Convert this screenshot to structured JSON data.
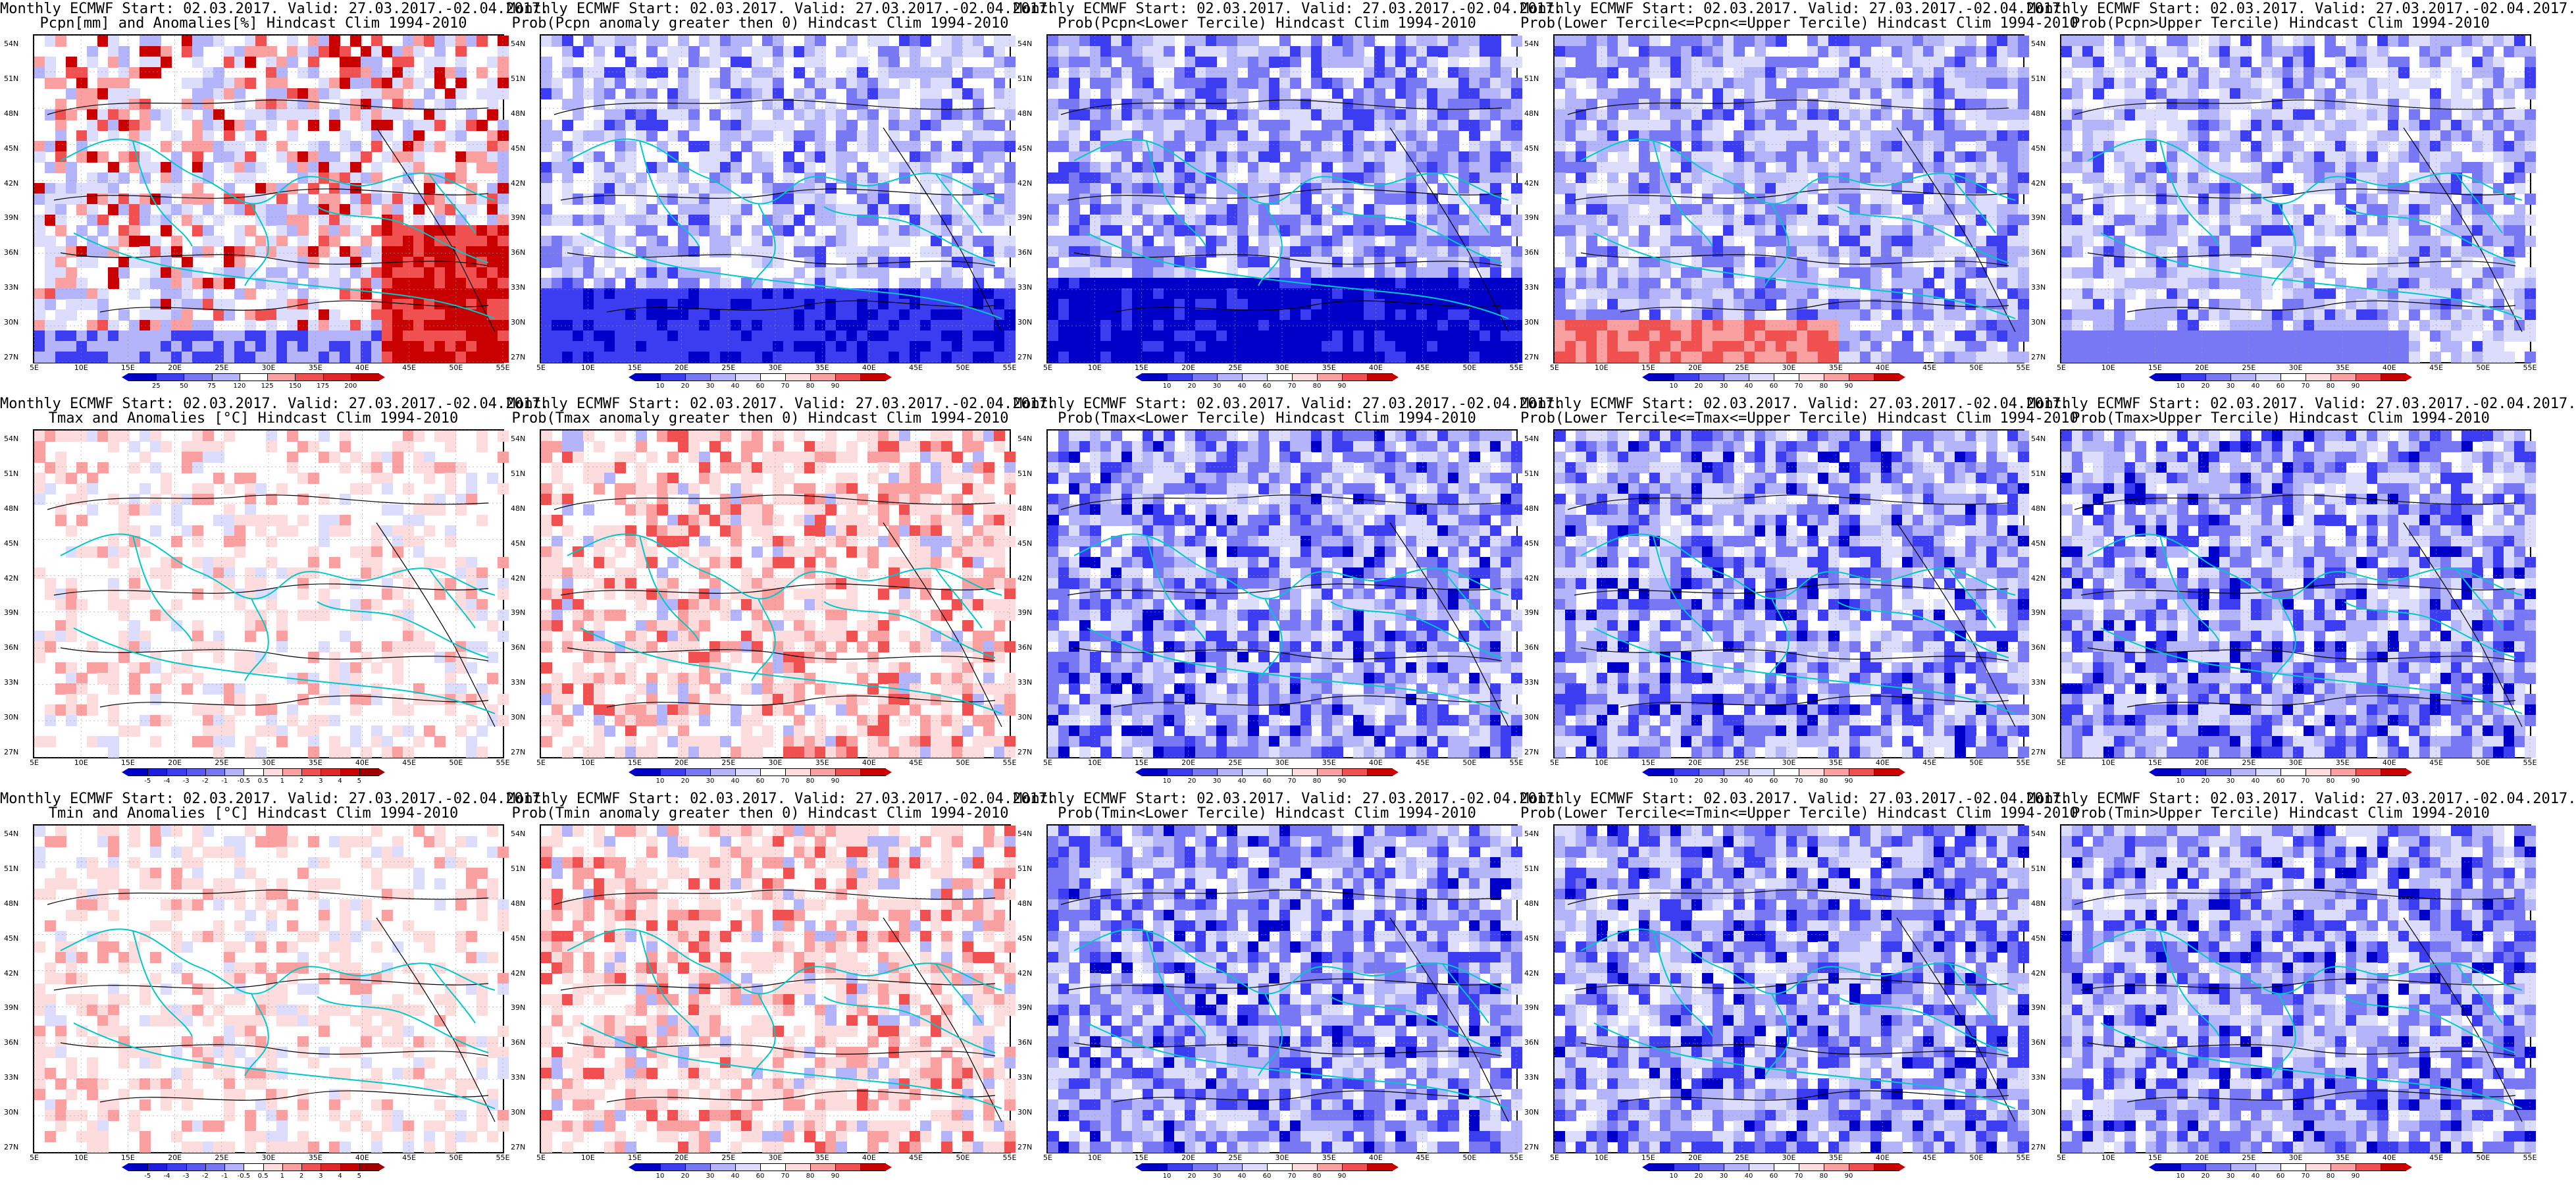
{
  "colors": {
    "deep_blue": "#0000c8",
    "blue": "#3c3cf0",
    "mid_blue": "#7878f5",
    "light_blue": "#b4b4fa",
    "pale_blue": "#dcdcfc",
    "white": "#ffffff",
    "pale_red": "#fcdcdc",
    "light_red": "#faa0a0",
    "red": "#f05050",
    "deep_red": "#c80000",
    "coast": "#00c8c8",
    "contour": "#000000"
  },
  "axes": {
    "y_ticks": [
      "54N",
      "51N",
      "48N",
      "45N",
      "42N",
      "39N",
      "36N",
      "33N",
      "30N",
      "27N"
    ],
    "x_ticks": [
      "5E",
      "10E",
      "15E",
      "20E",
      "25E",
      "30E",
      "35E",
      "40E",
      "45E",
      "50E",
      "55E"
    ]
  },
  "scales": {
    "pcpn_anom": {
      "labels": [
        "25",
        "50",
        "75",
        "120",
        "125",
        "150",
        "175",
        "200"
      ],
      "colors": [
        "#0000c8",
        "#3c3cf0",
        "#7878f5",
        "#b4b4fa",
        "#ffffff",
        "#faa0a0",
        "#f05050",
        "#e02828",
        "#c80000"
      ]
    },
    "prob": {
      "labels": [
        "10",
        "20",
        "30",
        "40",
        "60",
        "70",
        "80",
        "90"
      ],
      "colors": [
        "#0000c8",
        "#3c3cf0",
        "#7878f5",
        "#b4b4fa",
        "#dcdcfc",
        "#ffffff",
        "#fcdcdc",
        "#faa0a0",
        "#f05050",
        "#c80000"
      ]
    },
    "temp_anom": {
      "labels": [
        "-5",
        "-4",
        "-3",
        "-2",
        "-1",
        "-0.5",
        "0.5",
        "1",
        "2",
        "3",
        "4",
        "5"
      ],
      "colors": [
        "#0000c8",
        "#1e1ee0",
        "#3c3cf0",
        "#5a5af2",
        "#7878f5",
        "#b4b4fa",
        "#ffffff",
        "#fcdcdc",
        "#faa0a0",
        "#f05050",
        "#e02828",
        "#c80000",
        "#a00000"
      ]
    }
  },
  "panels": [
    {
      "title1": "Monthly ECMWF Start: 02.03.2017. Valid: 27.03.2017.-02.04.2017.",
      "title2": "Pcpn[mm] and Anomalies[%] Hindcast Clim 1994-2010",
      "scale": "pcpn_anom",
      "theme": "pcpn"
    },
    {
      "title1": "Monthly ECMWF Start: 02.03.2017. Valid: 27.03.2017.-02.04.2017.",
      "title2": "Prob(Pcpn anomaly greater then 0) Hindcast Clim 1994-2010",
      "scale": "prob",
      "theme": "blue_south"
    },
    {
      "title1": "Monthly ECMWF Start: 02.03.2017. Valid: 27.03.2017.-02.04.2017.",
      "title2": "Prob(Pcpn<Lower Tercile) Hindcast Clim 1994-2010",
      "scale": "prob",
      "theme": "deep_blue"
    },
    {
      "title1": "Monthly ECMWF Start: 02.03.2017. Valid: 27.03.2017.-02.04.2017.",
      "title2": "Prob(Lower Tercile<=Pcpn<=Upper Tercile) Hindcast Clim 1994-2010",
      "scale": "prob",
      "theme": "mid_red_sw"
    },
    {
      "title1": "Monthly ECMWF Start: 02.03.2017. Valid: 27.03.2017.-02.04.2017.",
      "title2": "Prob(Pcpn>Upper Tercile) Hindcast Clim 1994-2010",
      "scale": "prob",
      "theme": "light_blue"
    },
    {
      "title1": "Monthly ECMWF Start: 02.03.2017. Valid: 27.03.2017.-02.04.2017.",
      "title2": "Tmax and Anomalies [°C] Hindcast Clim 1994-2010",
      "scale": "temp_anom",
      "theme": "temp_white"
    },
    {
      "title1": "Monthly ECMWF Start: 02.03.2017. Valid: 27.03.2017.-02.04.2017.",
      "title2": "Prob(Tmax anomaly greater then 0) Hindcast Clim 1994-2010",
      "scale": "prob",
      "theme": "pinkish"
    },
    {
      "title1": "Monthly ECMWF Start: 02.03.2017. Valid: 27.03.2017.-02.04.2017.",
      "title2": "Prob(Tmax<Lower Tercile) Hindcast Clim 1994-2010",
      "scale": "prob",
      "theme": "blue_mix"
    },
    {
      "title1": "Monthly ECMWF Start: 02.03.2017. Valid: 27.03.2017.-02.04.2017.",
      "title2": "Prob(Lower Tercile<=Tmax<=Upper Tercile) Hindcast Clim 1994-2010",
      "scale": "prob",
      "theme": "blue_mix"
    },
    {
      "title1": "Monthly ECMWF Start: 02.03.2017. Valid: 27.03.2017.-02.04.2017.",
      "title2": "Prob(Tmax>Upper Tercile) Hindcast Clim 1994-2010",
      "scale": "prob",
      "theme": "blue_mix"
    },
    {
      "title1": "Monthly ECMWF Start: 02.03.2017. Valid: 27.03.2017.-02.04.2017.",
      "title2": "Tmin and Anomalies [°C] Hindcast Clim 1994-2010",
      "scale": "temp_anom",
      "theme": "temp_white"
    },
    {
      "title1": "Monthly ECMWF Start: 02.03.2017. Valid: 27.03.2017.-02.04.2017.",
      "title2": "Prob(Tmin anomaly greater then 0) Hindcast Clim 1994-2010",
      "scale": "prob",
      "theme": "pinkish"
    },
    {
      "title1": "Monthly ECMWF Start: 02.03.2017. Valid: 27.03.2017.-02.04.2017.",
      "title2": "Prob(Tmin<Lower Tercile) Hindcast Clim 1994-2010",
      "scale": "prob",
      "theme": "blue_mix"
    },
    {
      "title1": "Monthly ECMWF Start: 02.03.2017. Valid: 27.03.2017.-02.04.2017.",
      "title2": "Prob(Lower Tercile<=Tmin<=Upper Tercile) Hindcast Clim 1994-2010",
      "scale": "prob",
      "theme": "blue_mix"
    },
    {
      "title1": "Monthly ECMWF Start: 02.03.2017. Valid: 27.03.2017.-02.04.2017.",
      "title2": "Prob(Tmin>Upper Tercile) Hindcast Clim 1994-2010",
      "scale": "prob",
      "theme": "blue_mix"
    }
  ]
}
